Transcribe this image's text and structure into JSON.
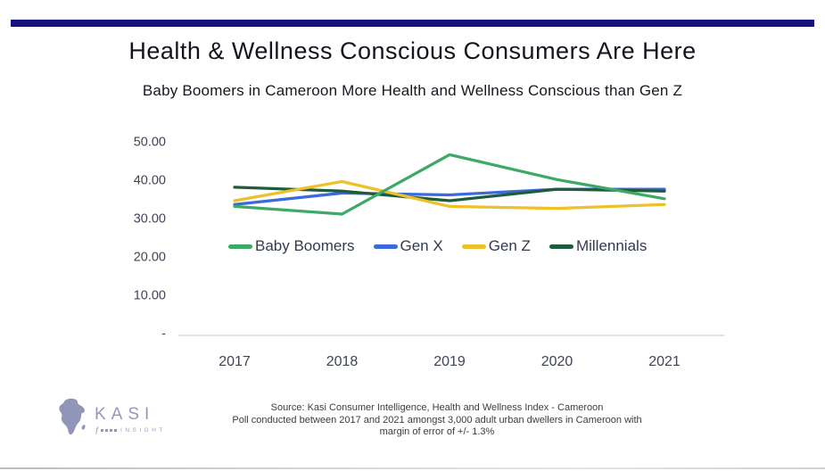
{
  "slide": {
    "title": "Health & Wellness Conscious Consumers Are Here",
    "subtitle": "Baby Boomers in Cameroon More Health and Wellness Conscious than Gen Z"
  },
  "chart_data": {
    "type": "line",
    "title": "Health & Wellness Conscious Consumers Are Here",
    "subtitle": "Baby Boomers in Cameroon More Health and Wellness Conscious than Gen Z",
    "categories": [
      "2017",
      "2018",
      "2019",
      "2020",
      "2021"
    ],
    "series": [
      {
        "name": "Baby Boomers",
        "color": "#3ea966",
        "values": [
          33,
          31,
          46.5,
          40,
          35
        ]
      },
      {
        "name": "Gen X",
        "color": "#3a6bd9",
        "values": [
          33.5,
          36.5,
          36,
          37.5,
          37.5
        ]
      },
      {
        "name": "Gen Z",
        "color": "#eec029",
        "values": [
          34.5,
          39.5,
          33,
          32.5,
          33.5
        ]
      },
      {
        "name": "Millennials",
        "color": "#1f5c3b",
        "values": [
          38,
          37,
          34.5,
          37.5,
          37
        ]
      }
    ],
    "xlabel": "",
    "ylabel": "",
    "ylim": [
      0,
      50
    ],
    "y_ticks": [
      {
        "label": "50.00",
        "value": 50
      },
      {
        "label": "40.00",
        "value": 40
      },
      {
        "label": "30.00",
        "value": 30
      },
      {
        "label": "20.00",
        "value": 20
      },
      {
        "label": "10.00",
        "value": 10
      },
      {
        "label": "-",
        "value": 0
      }
    ],
    "grid": false,
    "legend_position": "center-inside",
    "z_order": [
      "Gen X",
      "Millennials",
      "Gen Z",
      "Baby Boomers"
    ],
    "axis_line_color": "#d8d8d8",
    "tick_text_color": "#3f4558"
  },
  "footer": {
    "line1": "Source: Kasi Consumer Intelligence, Health and Wellness Index - Cameroon",
    "line2": "Poll conducted between 2017 and 2021 amongst 3,000 adult urban dwellers in Cameroon with",
    "line3": "margin of error of +/- 1.3%"
  },
  "logo": {
    "brand": "KASI",
    "tagline": "INSIGHT"
  },
  "accents": {
    "top_bar_color": "#14127c"
  }
}
